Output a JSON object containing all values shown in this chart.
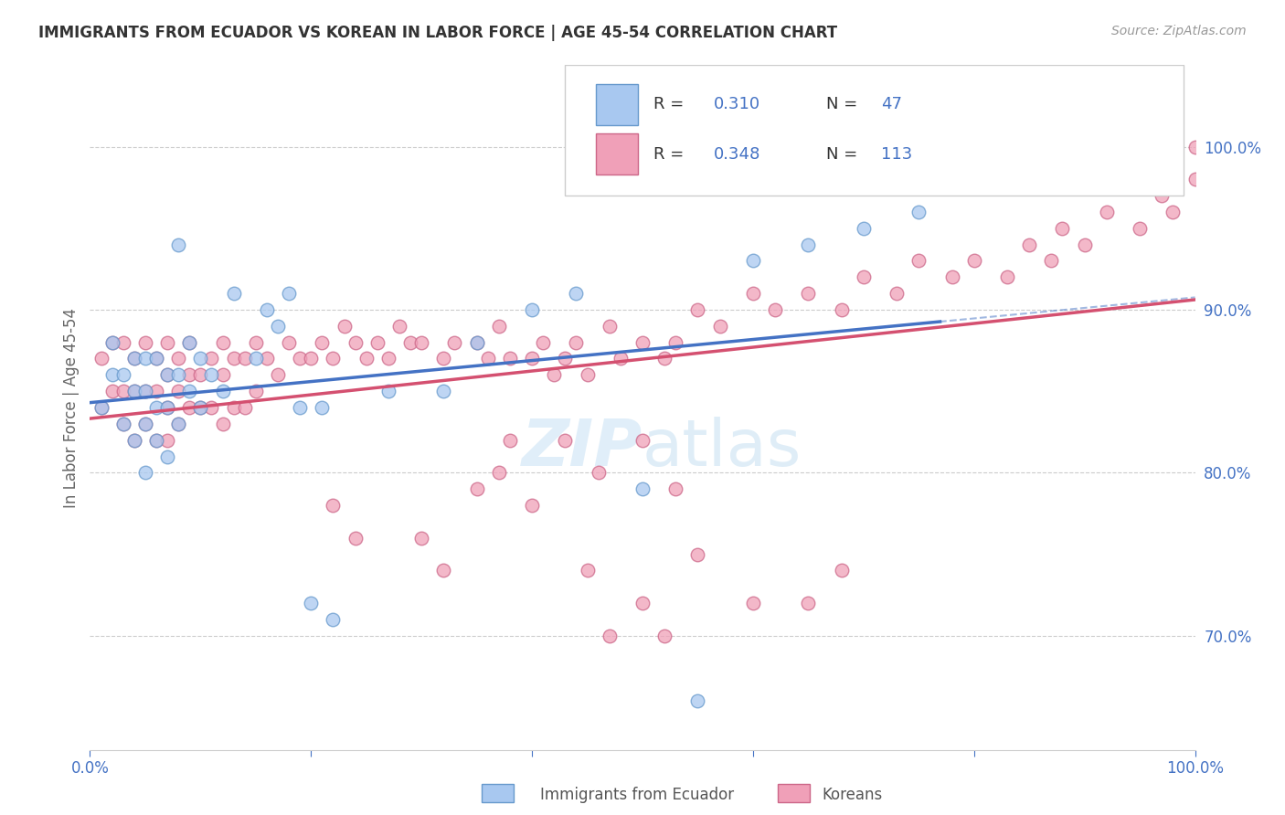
{
  "title": "IMMIGRANTS FROM ECUADOR VS KOREAN IN LABOR FORCE | AGE 45-54 CORRELATION CHART",
  "source": "Source: ZipAtlas.com",
  "ylabel": "In Labor Force | Age 45-54",
  "y_tick_labels": [
    "70.0%",
    "80.0%",
    "90.0%",
    "100.0%"
  ],
  "y_tick_positions": [
    0.7,
    0.8,
    0.9,
    1.0
  ],
  "xlim": [
    0.0,
    1.0
  ],
  "ylim": [
    0.63,
    1.05
  ],
  "legend_label_ecuador": "Immigrants from Ecuador",
  "legend_label_koreans": "Koreans",
  "ecuador_color": "#a8c8f0",
  "korean_color": "#f0a0b8",
  "ecuador_edge": "#6699cc",
  "korean_edge": "#cc6688",
  "regression_color_ecuador": "#4472c4",
  "regression_color_korean": "#d45070",
  "background_color": "#ffffff",
  "grid_color": "#cccccc",
  "title_color": "#333333",
  "axis_label_color": "#666666",
  "tick_label_color": "#4472c4",
  "source_color": "#999999",
  "watermark_color": "#cce4f5",
  "ecuador_x": [
    0.01,
    0.02,
    0.02,
    0.03,
    0.03,
    0.04,
    0.04,
    0.04,
    0.05,
    0.05,
    0.05,
    0.05,
    0.06,
    0.06,
    0.06,
    0.07,
    0.07,
    0.07,
    0.08,
    0.08,
    0.08,
    0.09,
    0.09,
    0.1,
    0.1,
    0.11,
    0.12,
    0.13,
    0.15,
    0.16,
    0.17,
    0.18,
    0.19,
    0.2,
    0.21,
    0.22,
    0.27,
    0.32,
    0.35,
    0.4,
    0.44,
    0.5,
    0.55,
    0.6,
    0.65,
    0.7,
    0.75
  ],
  "ecuador_y": [
    0.84,
    0.86,
    0.88,
    0.83,
    0.86,
    0.82,
    0.85,
    0.87,
    0.8,
    0.83,
    0.85,
    0.87,
    0.82,
    0.84,
    0.87,
    0.81,
    0.84,
    0.86,
    0.83,
    0.86,
    0.94,
    0.85,
    0.88,
    0.84,
    0.87,
    0.86,
    0.85,
    0.91,
    0.87,
    0.9,
    0.89,
    0.91,
    0.84,
    0.72,
    0.84,
    0.71,
    0.85,
    0.85,
    0.88,
    0.9,
    0.91,
    0.79,
    0.66,
    0.93,
    0.94,
    0.95,
    0.96
  ],
  "korean_x": [
    0.01,
    0.01,
    0.02,
    0.02,
    0.03,
    0.03,
    0.03,
    0.04,
    0.04,
    0.04,
    0.05,
    0.05,
    0.05,
    0.06,
    0.06,
    0.06,
    0.07,
    0.07,
    0.07,
    0.07,
    0.08,
    0.08,
    0.08,
    0.09,
    0.09,
    0.09,
    0.1,
    0.1,
    0.11,
    0.11,
    0.12,
    0.12,
    0.12,
    0.13,
    0.13,
    0.14,
    0.14,
    0.15,
    0.15,
    0.16,
    0.17,
    0.18,
    0.19,
    0.2,
    0.21,
    0.22,
    0.23,
    0.24,
    0.25,
    0.26,
    0.27,
    0.28,
    0.29,
    0.3,
    0.32,
    0.33,
    0.35,
    0.36,
    0.37,
    0.38,
    0.4,
    0.41,
    0.42,
    0.43,
    0.44,
    0.45,
    0.47,
    0.48,
    0.5,
    0.52,
    0.53,
    0.55,
    0.57,
    0.6,
    0.62,
    0.65,
    0.68,
    0.7,
    0.73,
    0.75,
    0.78,
    0.8,
    0.83,
    0.85,
    0.87,
    0.88,
    0.9,
    0.92,
    0.95,
    0.97,
    0.98,
    1.0,
    1.0,
    0.37,
    0.4,
    0.43,
    0.46,
    0.5,
    0.53,
    0.35,
    0.3,
    0.32,
    0.45,
    0.5,
    0.55,
    0.6,
    0.65,
    0.68,
    0.47,
    0.52,
    0.38,
    0.22,
    0.24
  ],
  "korean_y": [
    0.84,
    0.87,
    0.85,
    0.88,
    0.83,
    0.85,
    0.88,
    0.82,
    0.85,
    0.87,
    0.83,
    0.85,
    0.88,
    0.82,
    0.85,
    0.87,
    0.82,
    0.84,
    0.86,
    0.88,
    0.83,
    0.85,
    0.87,
    0.84,
    0.86,
    0.88,
    0.84,
    0.86,
    0.84,
    0.87,
    0.83,
    0.86,
    0.88,
    0.84,
    0.87,
    0.84,
    0.87,
    0.85,
    0.88,
    0.87,
    0.86,
    0.88,
    0.87,
    0.87,
    0.88,
    0.87,
    0.89,
    0.88,
    0.87,
    0.88,
    0.87,
    0.89,
    0.88,
    0.88,
    0.87,
    0.88,
    0.88,
    0.87,
    0.89,
    0.87,
    0.87,
    0.88,
    0.86,
    0.87,
    0.88,
    0.86,
    0.89,
    0.87,
    0.88,
    0.87,
    0.88,
    0.9,
    0.89,
    0.91,
    0.9,
    0.91,
    0.9,
    0.92,
    0.91,
    0.93,
    0.92,
    0.93,
    0.92,
    0.94,
    0.93,
    0.95,
    0.94,
    0.96,
    0.95,
    0.97,
    0.96,
    1.0,
    0.98,
    0.8,
    0.78,
    0.82,
    0.8,
    0.82,
    0.79,
    0.79,
    0.76,
    0.74,
    0.74,
    0.72,
    0.75,
    0.72,
    0.72,
    0.74,
    0.7,
    0.7,
    0.82,
    0.78,
    0.76
  ]
}
